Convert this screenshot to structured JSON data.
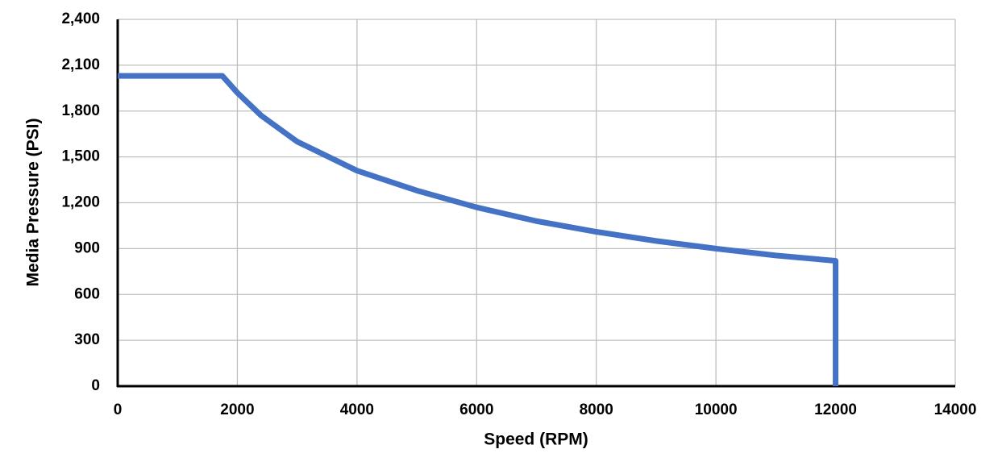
{
  "chart_data": {
    "type": "line",
    "xlabel": "Speed (RPM)",
    "ylabel": "Media Pressure (PSI)",
    "series": [
      {
        "color": "#4472c4",
        "x": [
          0,
          1750,
          2000,
          2400,
          3000,
          4000,
          5000,
          6000,
          7000,
          8000,
          9000,
          10000,
          11000,
          12000,
          12000
        ],
        "values": [
          2030,
          2030,
          1920,
          1770,
          1600,
          1410,
          1280,
          1170,
          1080,
          1010,
          950,
          900,
          855,
          820,
          0
        ]
      }
    ],
    "xlim": [
      0,
      14000
    ],
    "xticks": [
      0,
      2000,
      4000,
      6000,
      8000,
      10000,
      12000,
      14000
    ],
    "ylim": [
      0,
      2400
    ],
    "yticks": [
      0,
      300,
      600,
      900,
      {
        "value": 1200,
        "label": "1,200"
      },
      {
        "value": 1500,
        "label": "1,500"
      },
      {
        "value": 1800,
        "label": "1,800"
      },
      {
        "value": 2100,
        "label": "2,100"
      },
      {
        "value": 2400,
        "label": "2,400"
      }
    ],
    "grid": true
  }
}
